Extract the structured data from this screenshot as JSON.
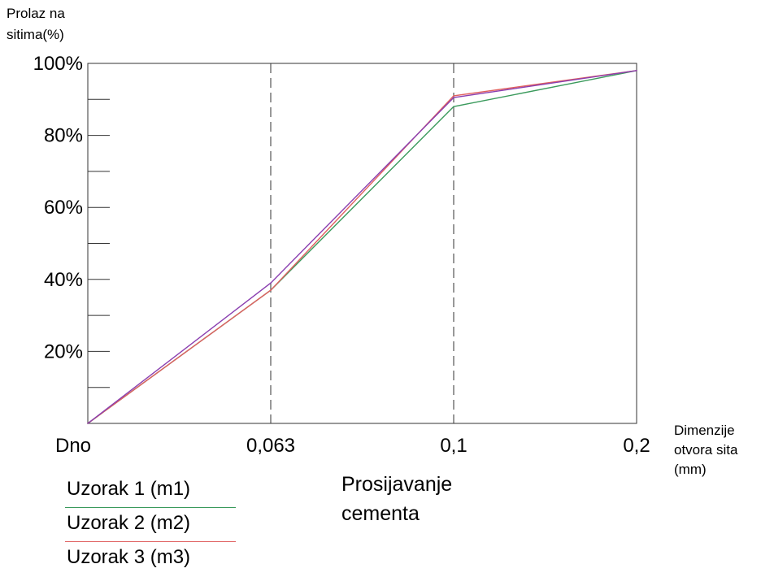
{
  "chart_data": {
    "type": "line",
    "ylabel_lines": [
      "Prolaz na",
      "sitima(%)"
    ],
    "xlabel_lines": [
      "Dimenzije",
      "otvora sita",
      "(mm)"
    ],
    "title_lines": [
      "Prosijavanje",
      "cementa"
    ],
    "categories": [
      "Dno",
      "0,063",
      "0,1",
      "0,2"
    ],
    "y_ticks": [
      "20%",
      "40%",
      "60%",
      "80%",
      "100%"
    ],
    "y_tick_values": [
      20,
      40,
      60,
      80,
      100
    ],
    "ylim": [
      0,
      100
    ],
    "grid": "dashed vertical lines at 0,063 and 0,1",
    "series": [
      {
        "name": "Uzorak 1 (m1)",
        "color": "#3a9a5c",
        "values": [
          0,
          37,
          88,
          98
        ]
      },
      {
        "name": "Uzorak 2 (m2)",
        "color": "#e06060",
        "values": [
          0,
          37,
          91,
          98
        ]
      },
      {
        "name": "Uzorak 3 (m3)",
        "color": "#8a3fb0",
        "values": [
          0,
          39,
          90.5,
          98
        ]
      }
    ],
    "legend_position": "bottom-left"
  }
}
